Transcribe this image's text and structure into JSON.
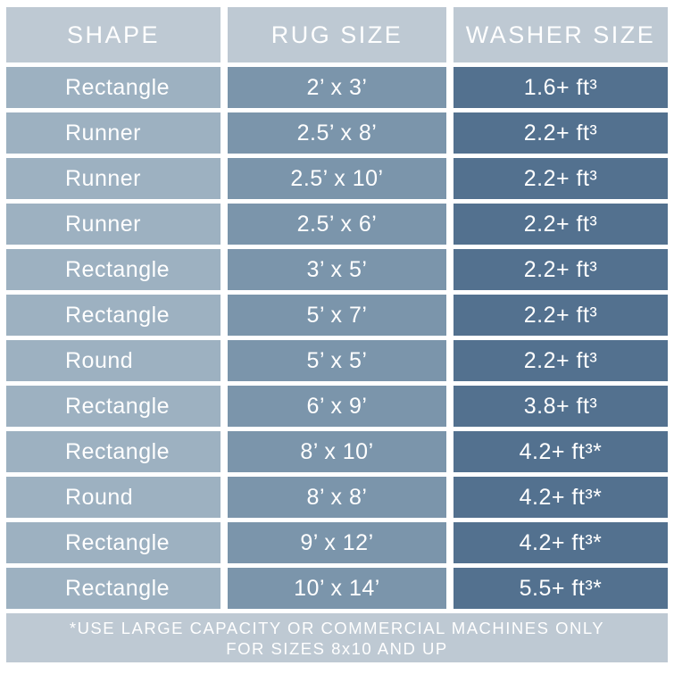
{
  "chart_data": {
    "type": "table",
    "columns": [
      "SHAPE",
      "RUG SIZE",
      "WASHER SIZE"
    ],
    "rows": [
      [
        "Rectangle",
        "2’ x 3’",
        "1.6+ ft³"
      ],
      [
        "Runner",
        "2.5’ x 8’",
        "2.2+ ft³"
      ],
      [
        "Runner",
        "2.5’ x 10’",
        "2.2+ ft³"
      ],
      [
        "Runner",
        "2.5’ x 6’",
        "2.2+ ft³"
      ],
      [
        "Rectangle",
        "3’ x 5’",
        "2.2+ ft³"
      ],
      [
        "Rectangle",
        "5’ x 7’",
        "2.2+ ft³"
      ],
      [
        "Round",
        "5’ x 5’",
        "2.2+ ft³"
      ],
      [
        "Rectangle",
        "6’ x 9’",
        "3.8+ ft³"
      ],
      [
        "Rectangle",
        "8’ x 10’",
        "4.2+ ft³*"
      ],
      [
        "Round",
        "8’ x 8’",
        "4.2+ ft³*"
      ],
      [
        "Rectangle",
        "9’ x 12’",
        "4.2+ ft³*"
      ],
      [
        "Rectangle",
        "10’ x 14’",
        "5.5+ ft³*"
      ]
    ],
    "footnote_lines": [
      "*USE LARGE CAPACITY OR COMMERCIAL MACHINES ONLY",
      "FOR SIZES 8x10 AND UP"
    ]
  },
  "colors": {
    "header_bg": "#bec9d3",
    "shape_col_bg": "#9db1c1",
    "rug_col_bg": "#7b95ab",
    "washer_col_bg": "#53718f",
    "gap": "#ffffff",
    "text": "#ffffff"
  }
}
